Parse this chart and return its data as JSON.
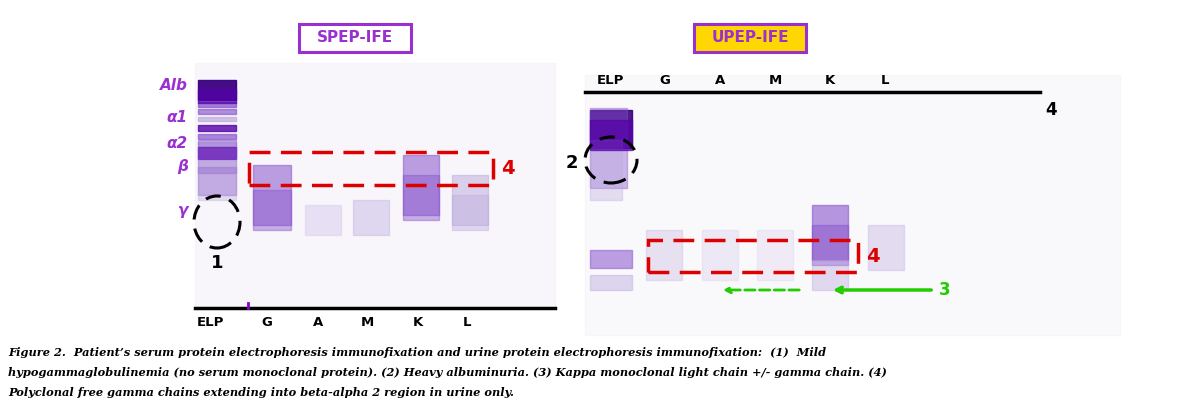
{
  "caption_line1": "Figure 2.  Patient’s serum protein electrophoresis immunofixation and urine protein electrophoresis immunofixation:  (1)  Mild",
  "caption_line2": "hypogammaglobulinemia (no serum monoclonal protein). (2) Heavy albuminuria. (3) Kappa monoclonal light chain +/- gamma chain. (4)",
  "caption_line3": "Polyclonal free gamma chains extending into beta-alpha 2 region in urine only.",
  "spep_label": "SPEP-IFE",
  "upep_label": "UPEP-IFE",
  "spep_box_color": "#9B30D0",
  "upep_box_color": "#FFD700",
  "upep_text_color": "#9B30D0",
  "left_band_labels": [
    "Alb",
    "α1",
    "α2",
    "β",
    "γ"
  ],
  "left_col_labels": [
    "ELP",
    "G",
    "A",
    "M",
    "K",
    "L"
  ],
  "right_col_labels": [
    "ELP",
    "G",
    "A",
    "M",
    "K",
    "L"
  ],
  "red_rect_color": "#DD0000",
  "green_arrow_color": "#22CC00",
  "label_color_purple": "#9B30D0",
  "label_color_red": "#DD0000",
  "label_color_green": "#22CC00",
  "background_color": "#FFFFFF",
  "band_dark": "#5500AA",
  "band_mid": "#8855CC",
  "band_light": "#BBAADD",
  "band_very_light": "#DDD0EE",
  "gel_bg": "#EDE8F5"
}
